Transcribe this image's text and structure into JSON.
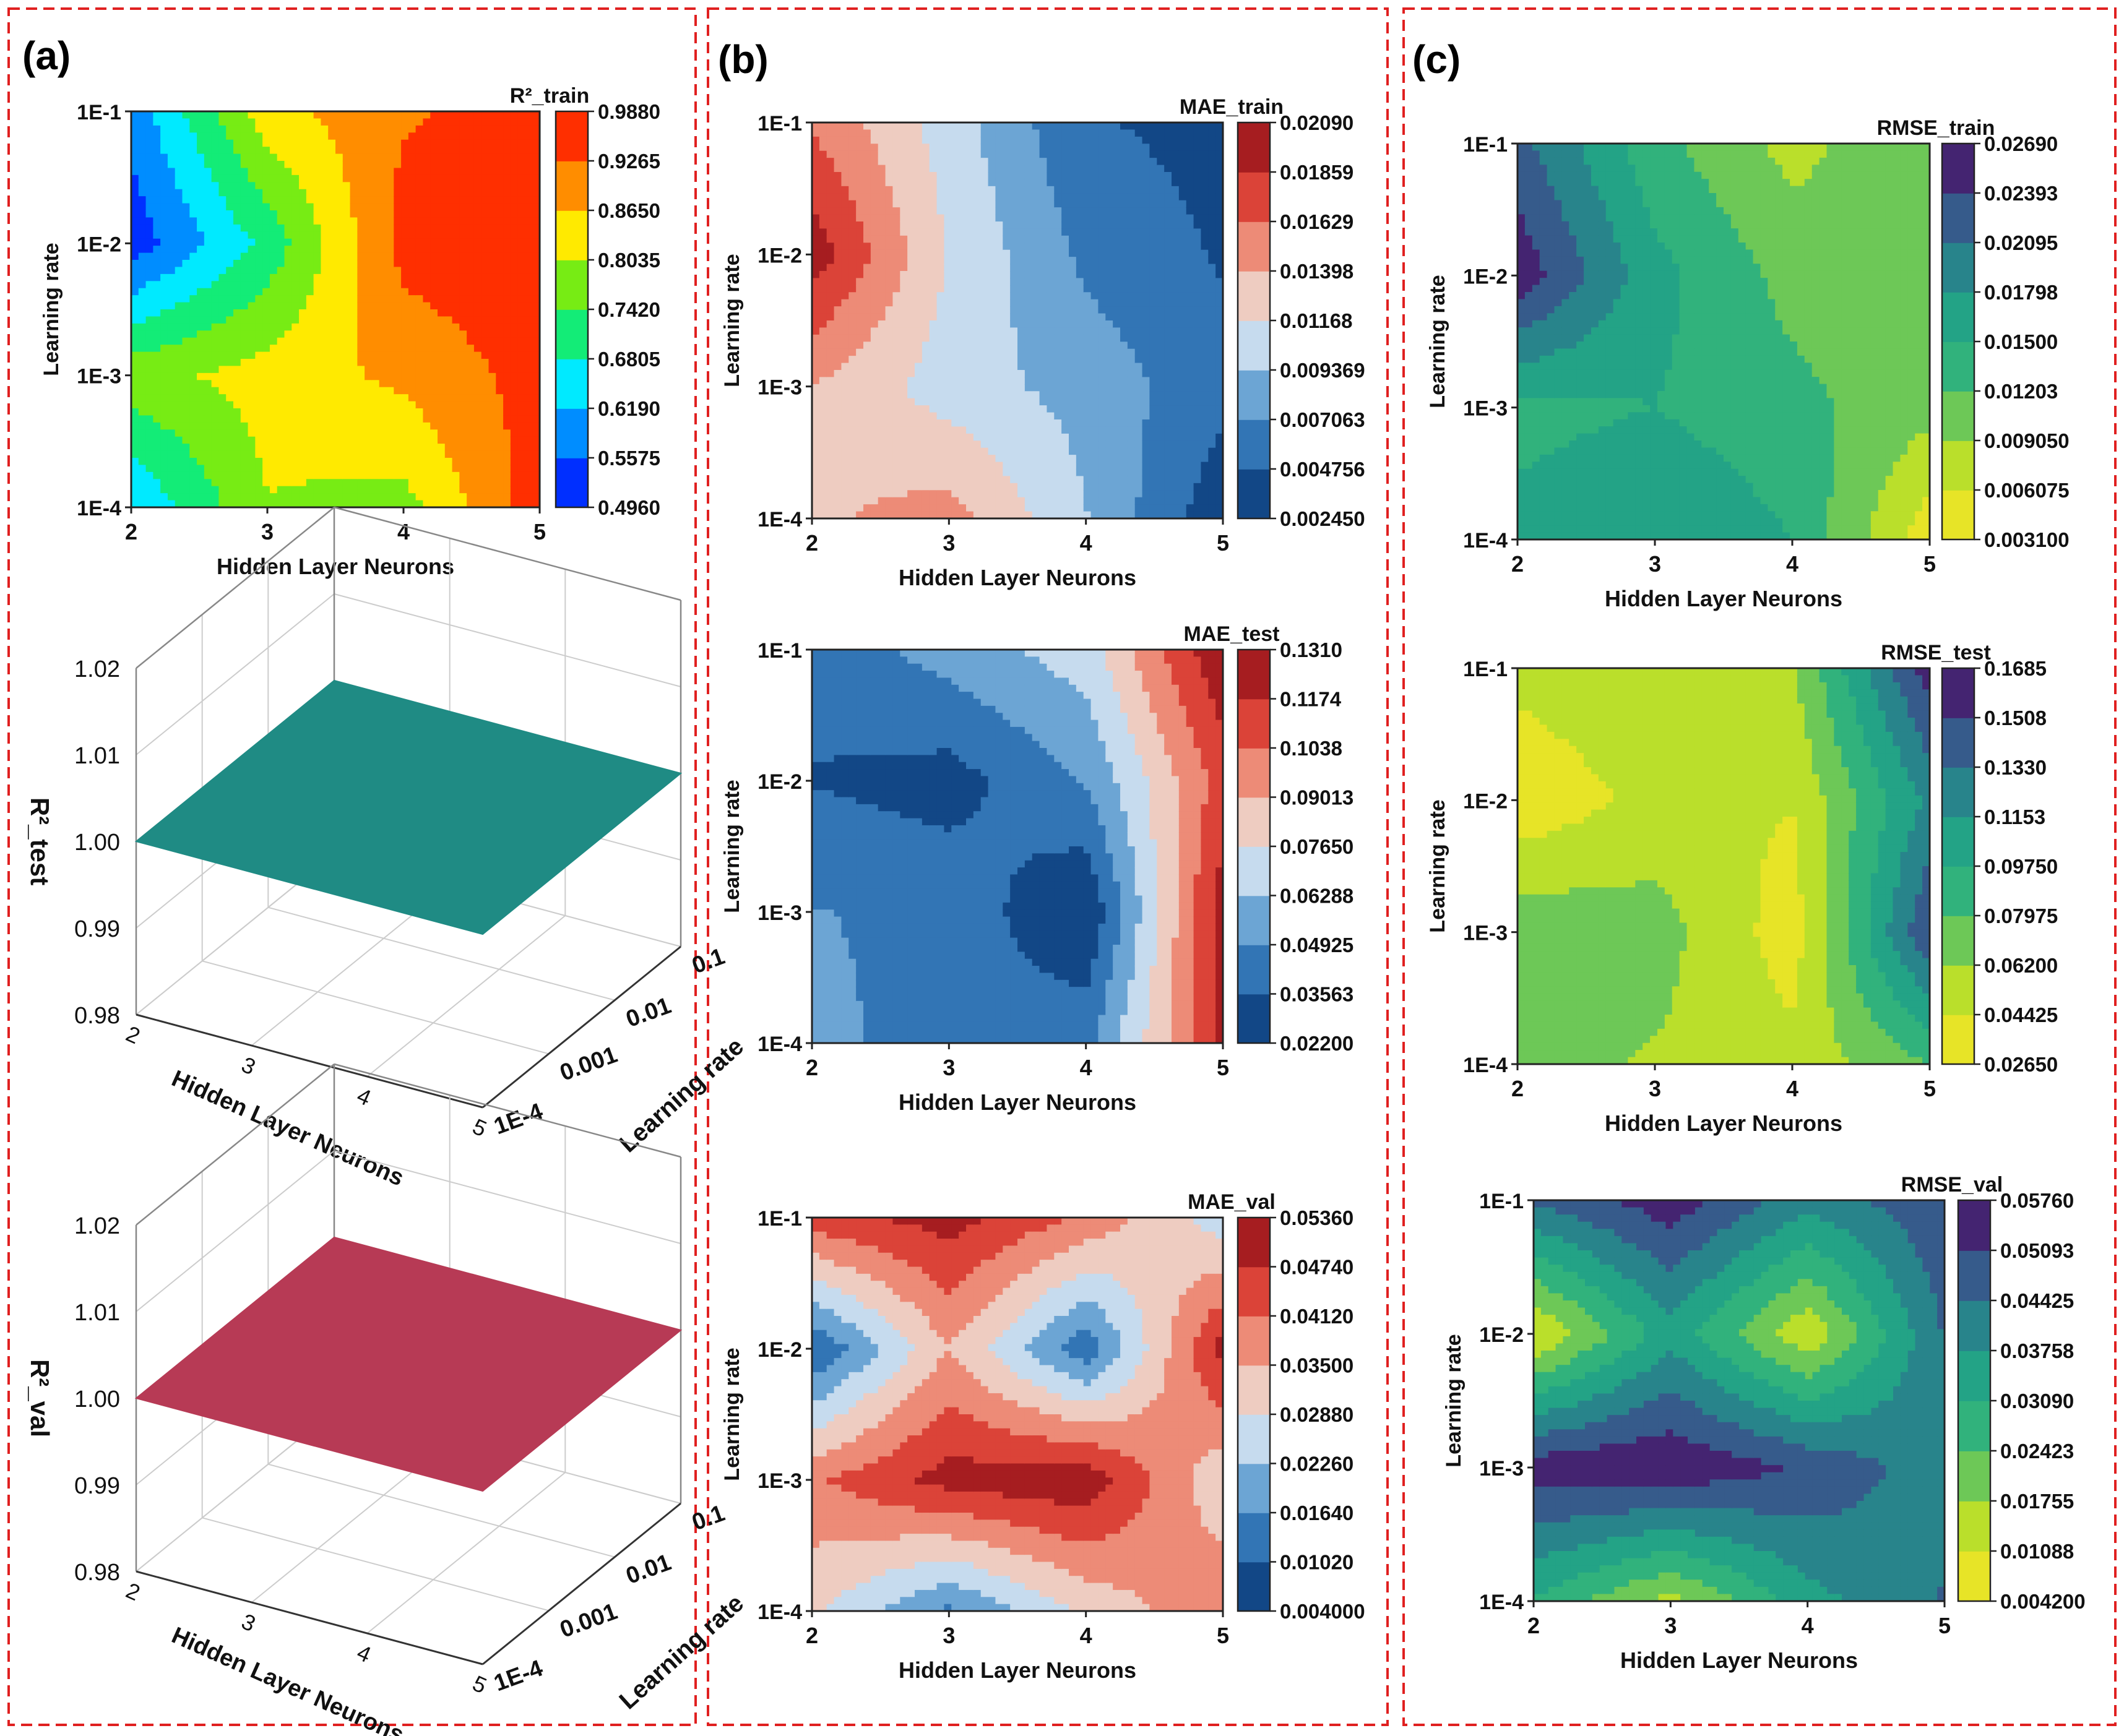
{
  "figure": {
    "panel_labels": [
      "(a)",
      "(b)",
      "(c)"
    ],
    "border_color": "#e02020"
  },
  "chart_data": [
    {
      "id": "r2_train",
      "panel": "(a)",
      "type": "heatmap",
      "style": "filled-contour",
      "title": "R²_train",
      "xlabel": "Hidden Layer Neurons",
      "ylabel": "Learning rate",
      "x": [
        2,
        3,
        4,
        5
      ],
      "x_ticks": [
        "2",
        "3",
        "4",
        "5"
      ],
      "y": [
        "1E-4",
        "1E-3",
        "1E-2",
        "1E-1"
      ],
      "log_y": true,
      "z": [
        [
          0.62,
          0.8,
          0.78,
          0.96
        ],
        [
          0.78,
          0.83,
          0.88,
          0.95
        ],
        [
          0.52,
          0.7,
          0.95,
          0.975
        ],
        [
          0.58,
          0.84,
          0.92,
          0.95
        ]
      ],
      "colorbar_ticks": [
        "0.9880",
        "0.9265",
        "0.8650",
        "0.8035",
        "0.7420",
        "0.6805",
        "0.6190",
        "0.5575",
        "0.4960"
      ],
      "zlim": [
        0.496,
        0.988
      ],
      "colormap": "jet"
    },
    {
      "id": "r2_test",
      "panel": "(a)",
      "type": "surface3d",
      "zlabel": "R²_test",
      "xlabel": "Hidden Layer Neurons",
      "ylabel": "Learning rate",
      "x_ticks": [
        "2",
        "3",
        "4",
        "5"
      ],
      "y_ticks": [
        "1E-4",
        "0.001",
        "0.01",
        "0.1"
      ],
      "z_ticks": [
        "0.98",
        "0.99",
        "1.00",
        "1.01",
        "1.02"
      ],
      "zlim": [
        0.98,
        1.02
      ],
      "z_value": 1.0,
      "surface_color": "#1f8b84"
    },
    {
      "id": "r2_val",
      "panel": "(a)",
      "type": "surface3d",
      "zlabel": "R²_val",
      "xlabel": "Hidden Layer Neurons",
      "ylabel": "Learning rate",
      "x_ticks": [
        "2",
        "3",
        "4",
        "5"
      ],
      "y_ticks": [
        "1E-4",
        "0.001",
        "0.01",
        "0.1"
      ],
      "z_ticks": [
        "0.98",
        "0.99",
        "1.00",
        "1.01",
        "1.02"
      ],
      "zlim": [
        0.98,
        1.02
      ],
      "z_value": 1.0,
      "surface_color": "#b73a55"
    },
    {
      "id": "mae_train",
      "panel": "(b)",
      "type": "heatmap",
      "style": "filled-contour",
      "title": "MAE_train",
      "xlabel": "Hidden Layer Neurons",
      "ylabel": "Learning rate",
      "x": [
        2,
        3,
        4,
        5
      ],
      "x_ticks": [
        "2",
        "3",
        "4",
        "5"
      ],
      "y": [
        "1E-4",
        "1E-3",
        "1E-2",
        "1E-1"
      ],
      "log_y": true,
      "z": [
        [
          0.0135,
          0.015,
          0.0095,
          0.003
        ],
        [
          0.014,
          0.0105,
          0.0085,
          0.0055
        ],
        [
          0.02,
          0.0115,
          0.0065,
          0.0045
        ],
        [
          0.016,
          0.0105,
          0.005,
          0.004
        ]
      ],
      "colorbar_ticks": [
        "0.02090",
        "0.01859",
        "0.01629",
        "0.01398",
        "0.01168",
        "0.009369",
        "0.007063",
        "0.004756",
        "0.002450"
      ],
      "zlim": [
        0.00245,
        0.0209
      ],
      "colormap": "RdBu_r"
    },
    {
      "id": "mae_test",
      "panel": "(b)",
      "type": "heatmap",
      "style": "filled-contour",
      "title": "MAE_test",
      "xlabel": "Hidden Layer Neurons",
      "ylabel": "Learning rate",
      "x": [
        2,
        3,
        4,
        5
      ],
      "x_ticks": [
        "2",
        "3",
        "4",
        "5"
      ],
      "y": [
        "1E-4",
        "1E-3",
        "1E-2",
        "1E-1"
      ],
      "log_y": true,
      "z": [
        [
          0.055,
          0.04,
          0.045,
          0.12
        ],
        [
          0.05,
          0.045,
          0.022,
          0.125
        ],
        [
          0.035,
          0.03,
          0.05,
          0.11
        ],
        [
          0.04,
          0.055,
          0.07,
          0.13
        ]
      ],
      "colorbar_ticks": [
        "0.1310",
        "0.1174",
        "0.1038",
        "0.09013",
        "0.07650",
        "0.06288",
        "0.04925",
        "0.03563",
        "0.02200"
      ],
      "zlim": [
        0.022,
        0.131
      ],
      "colormap": "RdBu_r"
    },
    {
      "id": "mae_val",
      "panel": "(b)",
      "type": "heatmap",
      "style": "filled-contour",
      "title": "MAE_val",
      "xlabel": "Hidden Layer Neurons",
      "ylabel": "Learning rate",
      "x": [
        2,
        3,
        4,
        5
      ],
      "x_ticks": [
        "2",
        "3",
        "4",
        "5"
      ],
      "y": [
        "1E-4",
        "1E-3",
        "1E-2",
        "1E-1"
      ],
      "log_y": true,
      "z": [
        [
          0.03,
          0.015,
          0.03,
          0.04
        ],
        [
          0.04,
          0.05,
          0.052,
          0.03
        ],
        [
          0.01,
          0.035,
          0.012,
          0.05
        ],
        [
          0.045,
          0.05,
          0.04,
          0.025
        ]
      ],
      "colorbar_ticks": [
        "0.05360",
        "0.04740",
        "0.04120",
        "0.03500",
        "0.02880",
        "0.02260",
        "0.01640",
        "0.01020",
        "0.004000"
      ],
      "zlim": [
        0.004,
        0.0536
      ],
      "colormap": "RdBu_r"
    },
    {
      "id": "rmse_train",
      "panel": "(c)",
      "type": "heatmap",
      "style": "filled-contour",
      "title": "RMSE_train",
      "xlabel": "Hidden Layer Neurons",
      "ylabel": "Learning rate",
      "x": [
        2,
        3,
        4,
        5
      ],
      "x_ticks": [
        "2",
        "3",
        "4",
        "5"
      ],
      "y": [
        "1E-4",
        "1E-3",
        "1E-2",
        "1E-1"
      ],
      "log_y": true,
      "z": [
        [
          0.016,
          0.018,
          0.015,
          0.004
        ],
        [
          0.014,
          0.015,
          0.013,
          0.01
        ],
        [
          0.026,
          0.016,
          0.011,
          0.009
        ],
        [
          0.022,
          0.013,
          0.008,
          0.012
        ]
      ],
      "colorbar_ticks": [
        "0.02690",
        "0.02393",
        "0.02095",
        "0.01798",
        "0.01500",
        "0.01203",
        "0.009050",
        "0.006075",
        "0.003100"
      ],
      "zlim": [
        0.0031,
        0.0269
      ],
      "colormap": "viridis_r"
    },
    {
      "id": "rmse_test",
      "panel": "(c)",
      "type": "heatmap",
      "style": "filled-contour",
      "title": "RMSE_test",
      "xlabel": "Hidden Layer Neurons",
      "ylabel": "Learning rate",
      "x": [
        2,
        3,
        4,
        5
      ],
      "x_ticks": [
        "2",
        "3",
        "4",
        "5"
      ],
      "y": [
        "1E-4",
        "1E-3",
        "1E-2",
        "1E-1"
      ],
      "log_y": true,
      "z": [
        [
          0.07,
          0.06,
          0.05,
          0.08
        ],
        [
          0.075,
          0.07,
          0.035,
          0.15
        ],
        [
          0.03,
          0.05,
          0.045,
          0.12
        ],
        [
          0.05,
          0.06,
          0.06,
          0.16
        ]
      ],
      "colorbar_ticks": [
        "0.1685",
        "0.1508",
        "0.1330",
        "0.1153",
        "0.09750",
        "0.07975",
        "0.06200",
        "0.04425",
        "0.02650"
      ],
      "zlim": [
        0.0265,
        0.1685
      ],
      "colormap": "viridis_r"
    },
    {
      "id": "rmse_val",
      "panel": "(c)",
      "type": "heatmap",
      "style": "filled-contour",
      "title": "RMSE_val",
      "xlabel": "Hidden Layer Neurons",
      "ylabel": "Learning rate",
      "x": [
        2,
        3,
        4,
        5
      ],
      "x_ticks": [
        "2",
        "3",
        "4",
        "5"
      ],
      "y": [
        "1E-4",
        "1E-3",
        "1E-2",
        "1E-1"
      ],
      "log_y": true,
      "z": [
        [
          0.03,
          0.015,
          0.035,
          0.045
        ],
        [
          0.055,
          0.057,
          0.05,
          0.04
        ],
        [
          0.01,
          0.035,
          0.012,
          0.045
        ],
        [
          0.045,
          0.055,
          0.04,
          0.05
        ]
      ],
      "colorbar_ticks": [
        "0.05760",
        "0.05093",
        "0.04425",
        "0.03758",
        "0.03090",
        "0.02423",
        "0.01755",
        "0.01088",
        "0.004200"
      ],
      "zlim": [
        0.0042,
        0.0576
      ],
      "colormap": "viridis_r"
    }
  ]
}
